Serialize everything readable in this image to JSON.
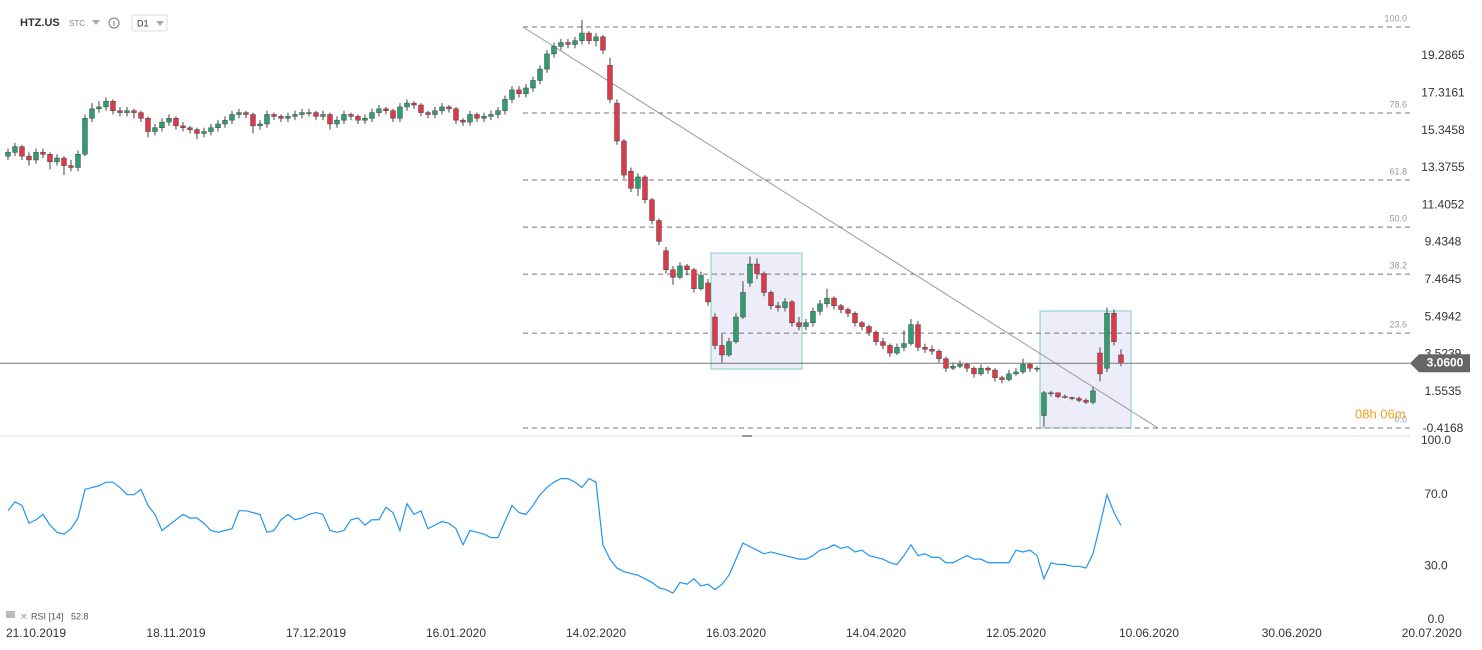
{
  "header": {
    "symbol": "HTZ.US",
    "market": "STC",
    "interval": "D1"
  },
  "chart_data": {
    "type": "candlestick",
    "colors": {
      "up": "#2f9e6e",
      "down": "#e0384b"
    },
    "ohlc": [
      [
        14.0,
        14.4,
        13.8,
        14.2
      ],
      [
        14.2,
        14.7,
        14.0,
        14.5
      ],
      [
        14.5,
        14.6,
        13.8,
        14.0
      ],
      [
        14.0,
        14.2,
        13.5,
        13.8
      ],
      [
        13.8,
        14.4,
        13.6,
        14.2
      ],
      [
        14.2,
        14.4,
        13.9,
        14.1
      ],
      [
        14.1,
        14.2,
        13.3,
        13.7
      ],
      [
        13.7,
        14.1,
        13.5,
        13.9
      ],
      [
        13.9,
        14.0,
        13.0,
        13.5
      ],
      [
        13.5,
        13.8,
        13.2,
        13.4
      ],
      [
        13.4,
        14.3,
        13.2,
        14.1
      ],
      [
        14.1,
        16.2,
        14.0,
        16.0
      ],
      [
        16.0,
        16.8,
        15.8,
        16.5
      ],
      [
        16.5,
        16.9,
        16.3,
        16.6
      ],
      [
        16.6,
        17.1,
        16.4,
        16.9
      ],
      [
        16.9,
        17.0,
        16.2,
        16.4
      ],
      [
        16.4,
        16.6,
        16.1,
        16.3
      ],
      [
        16.3,
        16.6,
        16.1,
        16.4
      ],
      [
        16.4,
        16.5,
        16.0,
        16.3
      ],
      [
        16.3,
        16.4,
        15.8,
        16.0
      ],
      [
        16.0,
        16.1,
        15.0,
        15.3
      ],
      [
        15.3,
        15.7,
        15.1,
        15.5
      ],
      [
        15.5,
        16.0,
        15.3,
        15.8
      ],
      [
        15.8,
        16.2,
        15.6,
        16.0
      ],
      [
        16.0,
        16.1,
        15.4,
        15.6
      ],
      [
        15.6,
        15.8,
        15.3,
        15.5
      ],
      [
        15.5,
        15.6,
        15.2,
        15.4
      ],
      [
        15.4,
        15.5,
        14.9,
        15.2
      ],
      [
        15.2,
        15.5,
        15.0,
        15.3
      ],
      [
        15.3,
        15.7,
        15.1,
        15.5
      ],
      [
        15.5,
        15.9,
        15.3,
        15.7
      ],
      [
        15.7,
        16.1,
        15.5,
        15.9
      ],
      [
        15.9,
        16.4,
        15.7,
        16.2
      ],
      [
        16.2,
        16.5,
        16.0,
        16.3
      ],
      [
        16.3,
        16.4,
        16.0,
        16.2
      ],
      [
        16.2,
        16.3,
        15.2,
        15.6
      ],
      [
        15.6,
        15.9,
        15.4,
        15.7
      ],
      [
        15.7,
        16.4,
        15.5,
        16.2
      ],
      [
        16.2,
        16.3,
        15.9,
        16.1
      ],
      [
        16.1,
        16.2,
        15.8,
        16.0
      ],
      [
        16.0,
        16.3,
        15.8,
        16.1
      ],
      [
        16.1,
        16.4,
        15.9,
        16.2
      ],
      [
        16.2,
        16.5,
        16.0,
        16.3
      ],
      [
        16.3,
        16.5,
        16.1,
        16.3
      ],
      [
        16.3,
        16.4,
        15.9,
        16.1
      ],
      [
        16.1,
        16.4,
        15.9,
        16.2
      ],
      [
        16.2,
        16.3,
        15.4,
        15.7
      ],
      [
        15.7,
        16.1,
        15.5,
        15.9
      ],
      [
        15.9,
        16.4,
        15.7,
        16.2
      ],
      [
        16.2,
        16.3,
        15.9,
        16.1
      ],
      [
        16.1,
        16.2,
        15.7,
        15.9
      ],
      [
        15.9,
        16.2,
        15.7,
        16.0
      ],
      [
        16.0,
        16.5,
        15.8,
        16.3
      ],
      [
        16.3,
        16.7,
        16.1,
        16.5
      ],
      [
        16.5,
        16.6,
        16.2,
        16.4
      ],
      [
        16.4,
        16.5,
        15.8,
        16.0
      ],
      [
        16.0,
        16.8,
        15.8,
        16.6
      ],
      [
        16.6,
        17.0,
        16.4,
        16.8
      ],
      [
        16.8,
        16.9,
        16.5,
        16.7
      ],
      [
        16.7,
        16.8,
        16.1,
        16.3
      ],
      [
        16.3,
        16.4,
        16.0,
        16.2
      ],
      [
        16.2,
        16.6,
        16.0,
        16.4
      ],
      [
        16.4,
        16.8,
        16.2,
        16.6
      ],
      [
        16.6,
        16.7,
        16.3,
        16.5
      ],
      [
        16.5,
        16.6,
        15.7,
        15.9
      ],
      [
        15.9,
        16.0,
        15.6,
        15.8
      ],
      [
        15.8,
        16.4,
        15.6,
        16.2
      ],
      [
        16.2,
        16.3,
        15.8,
        16.0
      ],
      [
        16.0,
        16.3,
        15.8,
        16.1
      ],
      [
        16.1,
        16.4,
        15.9,
        16.2
      ],
      [
        16.2,
        16.6,
        16.0,
        16.4
      ],
      [
        16.4,
        17.2,
        16.2,
        17.0
      ],
      [
        17.0,
        17.7,
        16.8,
        17.5
      ],
      [
        17.5,
        17.7,
        17.1,
        17.3
      ],
      [
        17.3,
        17.8,
        17.1,
        17.6
      ],
      [
        17.6,
        18.2,
        17.4,
        18.0
      ],
      [
        18.0,
        18.8,
        17.8,
        18.6
      ],
      [
        18.6,
        19.6,
        18.4,
        19.4
      ],
      [
        19.4,
        20.0,
        19.2,
        19.8
      ],
      [
        19.8,
        20.2,
        19.6,
        20.0
      ],
      [
        20.0,
        20.2,
        19.7,
        19.9
      ],
      [
        19.9,
        20.3,
        19.7,
        20.1
      ],
      [
        20.1,
        21.2,
        19.9,
        20.5
      ],
      [
        20.5,
        20.6,
        19.9,
        20.1
      ],
      [
        20.1,
        20.5,
        19.8,
        20.3
      ],
      [
        20.3,
        20.4,
        19.4,
        19.6
      ],
      [
        18.8,
        19.2,
        16.8,
        17.0
      ],
      [
        16.8,
        17.0,
        14.6,
        14.8
      ],
      [
        14.8,
        14.9,
        12.8,
        13.0
      ],
      [
        13.2,
        13.4,
        12.1,
        12.3
      ],
      [
        12.3,
        13.1,
        11.9,
        12.9
      ],
      [
        12.9,
        13.0,
        11.5,
        11.7
      ],
      [
        11.7,
        11.8,
        10.4,
        10.6
      ],
      [
        10.6,
        10.7,
        9.3,
        9.5
      ],
      [
        9.0,
        9.2,
        7.8,
        8.0
      ],
      [
        8.0,
        8.2,
        7.2,
        7.6
      ],
      [
        7.6,
        8.4,
        7.5,
        8.2
      ],
      [
        8.2,
        8.3,
        7.7,
        8.0
      ],
      [
        8.0,
        8.1,
        6.8,
        7.0
      ],
      [
        7.0,
        7.9,
        6.9,
        7.7
      ],
      [
        7.3,
        7.5,
        6.1,
        6.3
      ],
      [
        5.5,
        5.7,
        3.8,
        4.0
      ],
      [
        4.0,
        4.6,
        3.1,
        3.5
      ],
      [
        3.5,
        4.4,
        3.4,
        4.2
      ],
      [
        4.2,
        5.7,
        4.1,
        5.5
      ],
      [
        5.5,
        7.4,
        5.4,
        6.8
      ],
      [
        7.3,
        8.7,
        7.1,
        8.3
      ],
      [
        8.3,
        8.6,
        7.5,
        7.8
      ],
      [
        7.8,
        7.9,
        6.6,
        6.8
      ],
      [
        6.8,
        6.9,
        5.9,
        6.1
      ],
      [
        6.1,
        6.3,
        5.8,
        6.0
      ],
      [
        6.0,
        6.5,
        5.8,
        6.3
      ],
      [
        6.3,
        6.4,
        5.0,
        5.2
      ],
      [
        5.2,
        5.5,
        4.8,
        5.0
      ],
      [
        5.0,
        5.4,
        4.8,
        5.2
      ],
      [
        5.2,
        6.0,
        5.0,
        5.8
      ],
      [
        5.8,
        6.4,
        5.6,
        6.2
      ],
      [
        6.2,
        7.0,
        6.0,
        6.5
      ],
      [
        6.5,
        6.6,
        5.9,
        6.1
      ],
      [
        6.1,
        6.2,
        5.7,
        5.9
      ],
      [
        5.9,
        6.0,
        5.5,
        5.7
      ],
      [
        5.7,
        5.8,
        5.0,
        5.2
      ],
      [
        5.2,
        5.3,
        4.8,
        5.0
      ],
      [
        5.0,
        5.1,
        4.5,
        4.7
      ],
      [
        4.7,
        4.8,
        4.0,
        4.2
      ],
      [
        4.2,
        4.4,
        3.8,
        4.0
      ],
      [
        4.0,
        4.1,
        3.4,
        3.6
      ],
      [
        3.6,
        4.1,
        3.5,
        3.9
      ],
      [
        3.9,
        4.8,
        3.7,
        4.1
      ],
      [
        4.1,
        5.4,
        4.0,
        5.1
      ],
      [
        5.1,
        5.3,
        3.7,
        3.9
      ],
      [
        3.9,
        4.1,
        3.6,
        3.8
      ],
      [
        3.8,
        4.0,
        3.5,
        3.7
      ],
      [
        3.7,
        3.8,
        3.1,
        3.3
      ],
      [
        3.3,
        3.4,
        2.6,
        2.8
      ],
      [
        2.8,
        3.1,
        2.7,
        2.9
      ],
      [
        2.9,
        3.2,
        2.8,
        3.0
      ],
      [
        3.0,
        3.1,
        2.6,
        2.8
      ],
      [
        2.8,
        2.9,
        2.3,
        2.5
      ],
      [
        2.5,
        3.0,
        2.4,
        2.8
      ],
      [
        2.8,
        2.9,
        2.5,
        2.7
      ],
      [
        2.7,
        2.8,
        2.1,
        2.3
      ],
      [
        2.3,
        2.4,
        2.0,
        2.2
      ],
      [
        2.2,
        2.7,
        2.1,
        2.5
      ],
      [
        2.5,
        2.8,
        2.4,
        2.6
      ],
      [
        2.6,
        3.3,
        2.5,
        3.0
      ],
      [
        3.0,
        3.1,
        2.6,
        2.8
      ],
      [
        2.8,
        2.9,
        2.6,
        2.8
      ],
      [
        0.3,
        1.6,
        -0.3,
        1.5
      ],
      [
        1.5,
        1.6,
        1.3,
        1.5
      ],
      [
        1.5,
        1.5,
        1.2,
        1.3
      ],
      [
        1.3,
        1.4,
        1.2,
        1.25
      ],
      [
        1.25,
        1.3,
        1.1,
        1.2
      ],
      [
        1.2,
        1.3,
        1.0,
        1.1
      ],
      [
        1.1,
        1.2,
        0.9,
        1.0
      ],
      [
        1.0,
        1.8,
        0.9,
        1.6
      ],
      [
        3.6,
        3.9,
        2.1,
        2.5
      ],
      [
        2.8,
        6.0,
        2.6,
        5.7
      ],
      [
        5.7,
        5.9,
        4.0,
        4.2
      ],
      [
        3.5,
        3.8,
        2.9,
        3.06
      ]
    ],
    "xlim": [
      -1.14,
      200.29
    ],
    "xticks": [
      {
        "value": 4,
        "label": "21.10.2019"
      },
      {
        "value": 24,
        "label": "18.11.2019"
      },
      {
        "value": 44,
        "label": "17.12.2019"
      },
      {
        "value": 64,
        "label": "16.01.2020"
      },
      {
        "value": 84,
        "label": "14.02.2020"
      },
      {
        "value": 104,
        "label": "16.03.2020"
      },
      {
        "value": 124,
        "label": "14.04.2020"
      },
      {
        "value": 144,
        "label": "12.05.2020"
      },
      {
        "value": 163,
        "label": "10.06.2020"
      },
      {
        "value": 183.4,
        "label": "30.06.2020"
      },
      {
        "value": 203.4,
        "label": "20.07.2020"
      }
    ],
    "ylim": [
      -0.73,
      21.72
    ],
    "yticks": [
      19.2865,
      17.3161,
      15.3458,
      13.3755,
      11.4052,
      9.4348,
      7.4645,
      5.4942,
      3.5239,
      1.5535,
      -0.4168
    ],
    "last_price": {
      "value": 3.06,
      "label": "3.0600"
    },
    "fib_levels": [
      {
        "value": 20.82,
        "label": "100.0"
      },
      {
        "value": 16.28,
        "label": "78.6"
      },
      {
        "value": 12.74,
        "label": "61.8"
      },
      {
        "value": 10.25,
        "label": "50.0"
      },
      {
        "value": 7.77,
        "label": "38.2"
      },
      {
        "value": 4.65,
        "label": "23.6"
      },
      {
        "value": -0.36,
        "label": "0.0"
      }
    ],
    "timer": "08h 06m",
    "rsi": {
      "type": "line",
      "name": "RSI [14]",
      "color": "#2196f3",
      "ylim": [
        0,
        100
      ],
      "yticks": [
        {
          "value": 100,
          "label": "100.0"
        },
        {
          "value": 70,
          "label": "70.0"
        },
        {
          "value": 30,
          "label": "30.0"
        },
        {
          "value": 0,
          "label": "0.0"
        }
      ],
      "values": [
        61,
        66,
        64,
        54,
        56,
        59,
        53,
        49,
        48,
        51,
        57,
        73,
        74,
        75,
        77,
        77,
        74,
        70,
        70,
        73,
        64,
        59,
        50,
        53,
        56,
        59,
        57,
        57,
        54,
        50,
        49,
        50,
        51,
        61,
        61,
        60,
        59,
        49,
        50,
        56,
        59,
        56,
        57,
        59,
        60,
        59,
        50,
        49,
        50,
        56,
        57,
        53,
        56,
        56,
        63,
        60,
        50,
        65,
        59,
        61,
        51,
        53,
        55,
        54,
        51,
        42,
        50,
        49,
        48,
        46,
        46,
        55,
        64,
        60,
        59,
        64,
        70,
        74,
        77,
        79,
        79,
        77,
        74,
        79,
        77,
        42,
        34,
        29,
        27,
        26,
        25,
        23,
        21,
        18,
        17,
        15,
        21,
        20,
        23,
        19,
        20,
        17,
        20,
        25,
        34,
        43,
        41,
        39,
        37,
        38,
        37,
        36,
        35,
        34,
        34,
        36,
        39,
        40,
        42,
        40,
        41,
        38,
        39,
        36,
        35,
        34,
        32,
        31,
        36,
        42,
        36,
        37,
        35,
        35,
        32,
        32,
        34,
        36,
        34,
        34,
        32,
        32,
        32,
        32,
        39,
        38,
        39,
        36,
        23,
        32,
        31,
        31,
        30,
        30,
        29,
        37,
        53,
        70,
        60,
        52.8
      ]
    }
  }
}
